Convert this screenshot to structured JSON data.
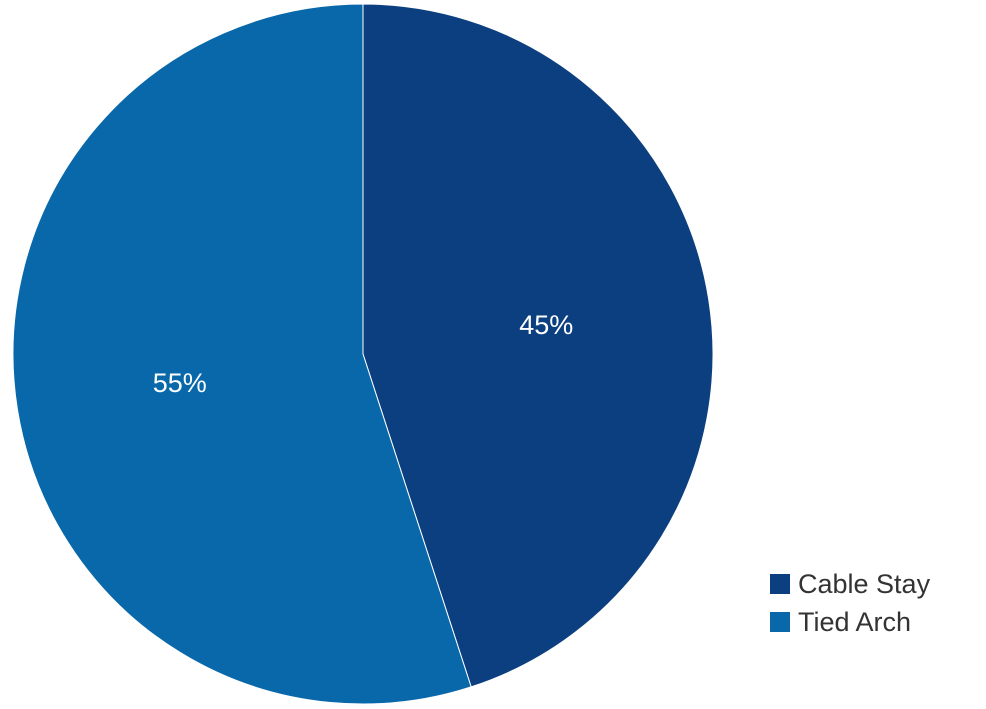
{
  "chart_data": {
    "type": "pie",
    "categories": [
      "Cable Stay",
      "Tied Arch"
    ],
    "values": [
      45,
      55
    ],
    "data_labels": [
      "45%",
      "55%"
    ],
    "colors": [
      "#0b3f7f",
      "#0868aa"
    ],
    "title": "",
    "legend_position": "bottom-right",
    "start_angle": "12 o'clock",
    "direction": "clockwise"
  }
}
